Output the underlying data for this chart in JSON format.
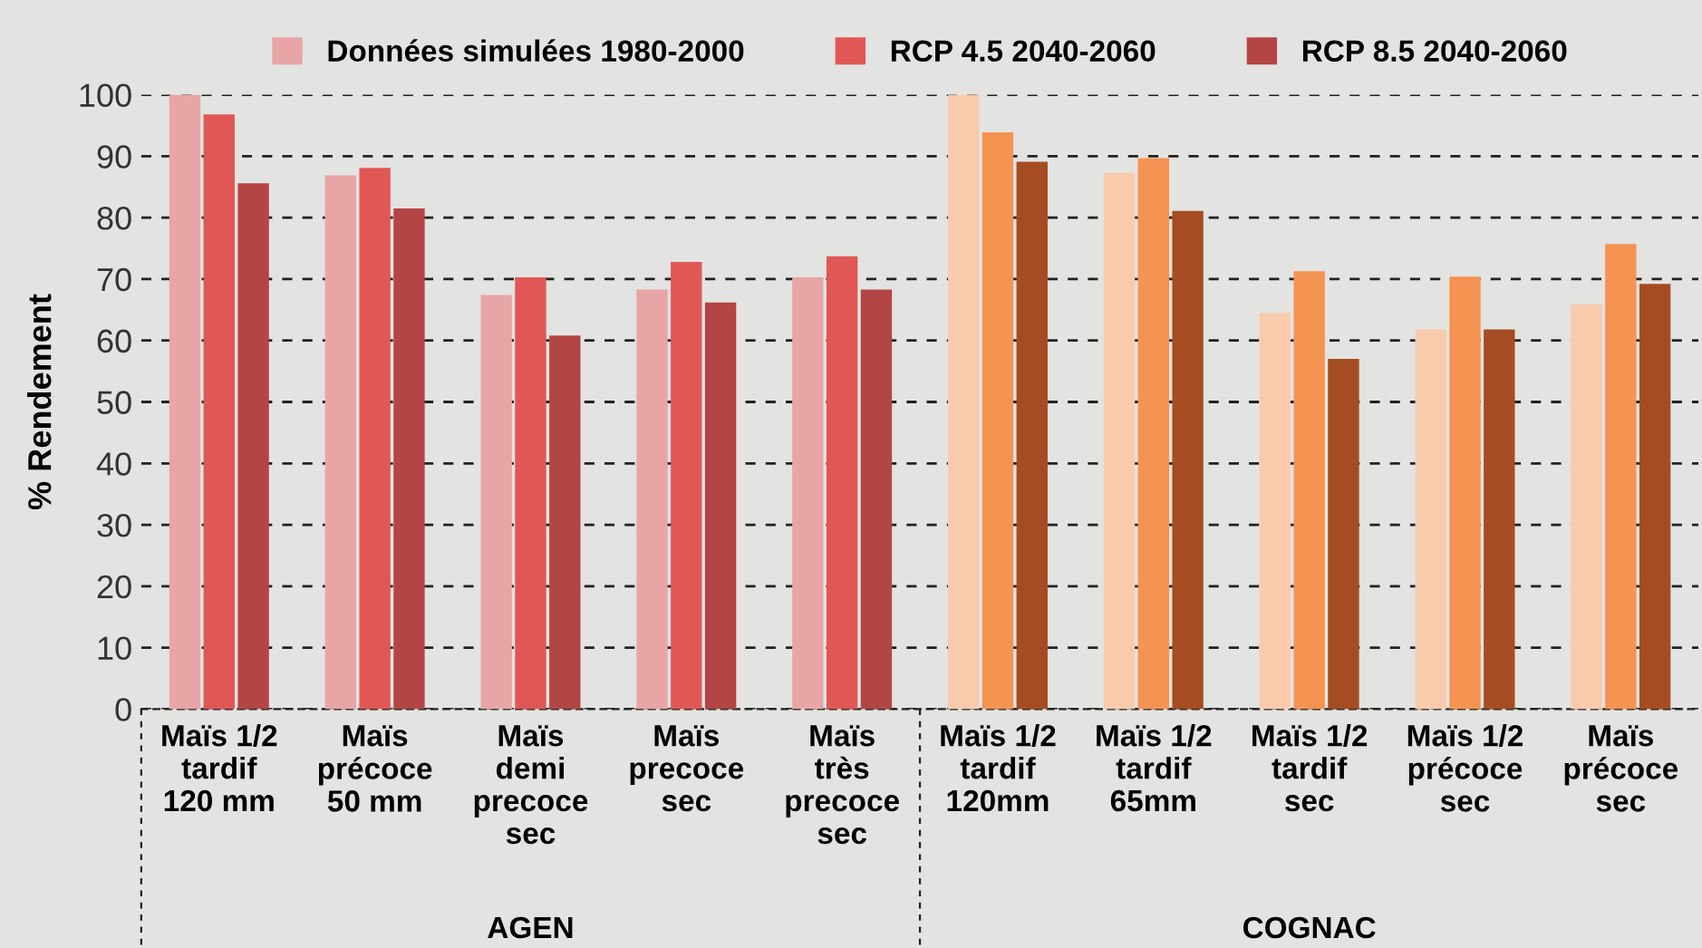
{
  "chart_data": {
    "type": "bar",
    "ylabel": "% Rendement",
    "categories": [
      "Maïs 1/2\ntardif\n120 mm",
      "Maïs\nprécoce\n50 mm",
      "Maïs\ndemi\nprecoce\nsec",
      "Maïs\nprecoce\nsec",
      "Maïs\ntrès\nprecoce\nsec",
      "Maïs 1/2\ntardif\n120mm",
      "Maïs 1/2\ntardif\n65mm",
      "Maïs 1/2\ntardif\nsec",
      "Maïs 1/2\nprécoce\nsec",
      "Maïs\nprécoce\nsec"
    ],
    "series": [
      {
        "name": "Données simulées 1980-2000",
        "color": "#e8a5a5",
        "colors": [
          "#e8a5a5",
          "#e8a5a5",
          "#e8a5a5",
          "#e8a5a5",
          "#e8a5a5",
          "#f9cbac",
          "#f9cbac",
          "#f9cbac",
          "#f9cbac",
          "#f9cbac"
        ],
        "values": [
          100,
          86.9,
          67.4,
          68.3,
          70.3,
          100,
          87.3,
          64.5,
          61.8,
          65.9
        ]
      },
      {
        "name": "RCP 4.5 2040-2060",
        "color": "#e05755",
        "colors": [
          "#e05755",
          "#e05755",
          "#e05755",
          "#e05755",
          "#e05755",
          "#f59352",
          "#f59352",
          "#f59352",
          "#f59352",
          "#f59352"
        ],
        "values": [
          96.8,
          88.1,
          70.3,
          72.8,
          73.7,
          93.9,
          89.7,
          71.3,
          70.4,
          75.7
        ]
      },
      {
        "name": "RCP 8.5 2040-2060",
        "color": "#b34545",
        "colors": [
          "#b34545",
          "#b34545",
          "#b34545",
          "#b34545",
          "#b34545",
          "#a64c22",
          "#a64c22",
          "#a64c22",
          "#a64c22",
          "#a64c22"
        ],
        "values": [
          85.6,
          81.5,
          60.8,
          66.2,
          68.3,
          89.1,
          81.1,
          57.0,
          61.8,
          69.2
        ]
      }
    ],
    "annotations": [
      "AGEN",
      "COGNAC"
    ],
    "ylim": [
      0,
      100
    ],
    "yticks": [
      0,
      10,
      20,
      30,
      40,
      50,
      60,
      70,
      80,
      90,
      100
    ],
    "grid": "y",
    "legend": "top"
  }
}
